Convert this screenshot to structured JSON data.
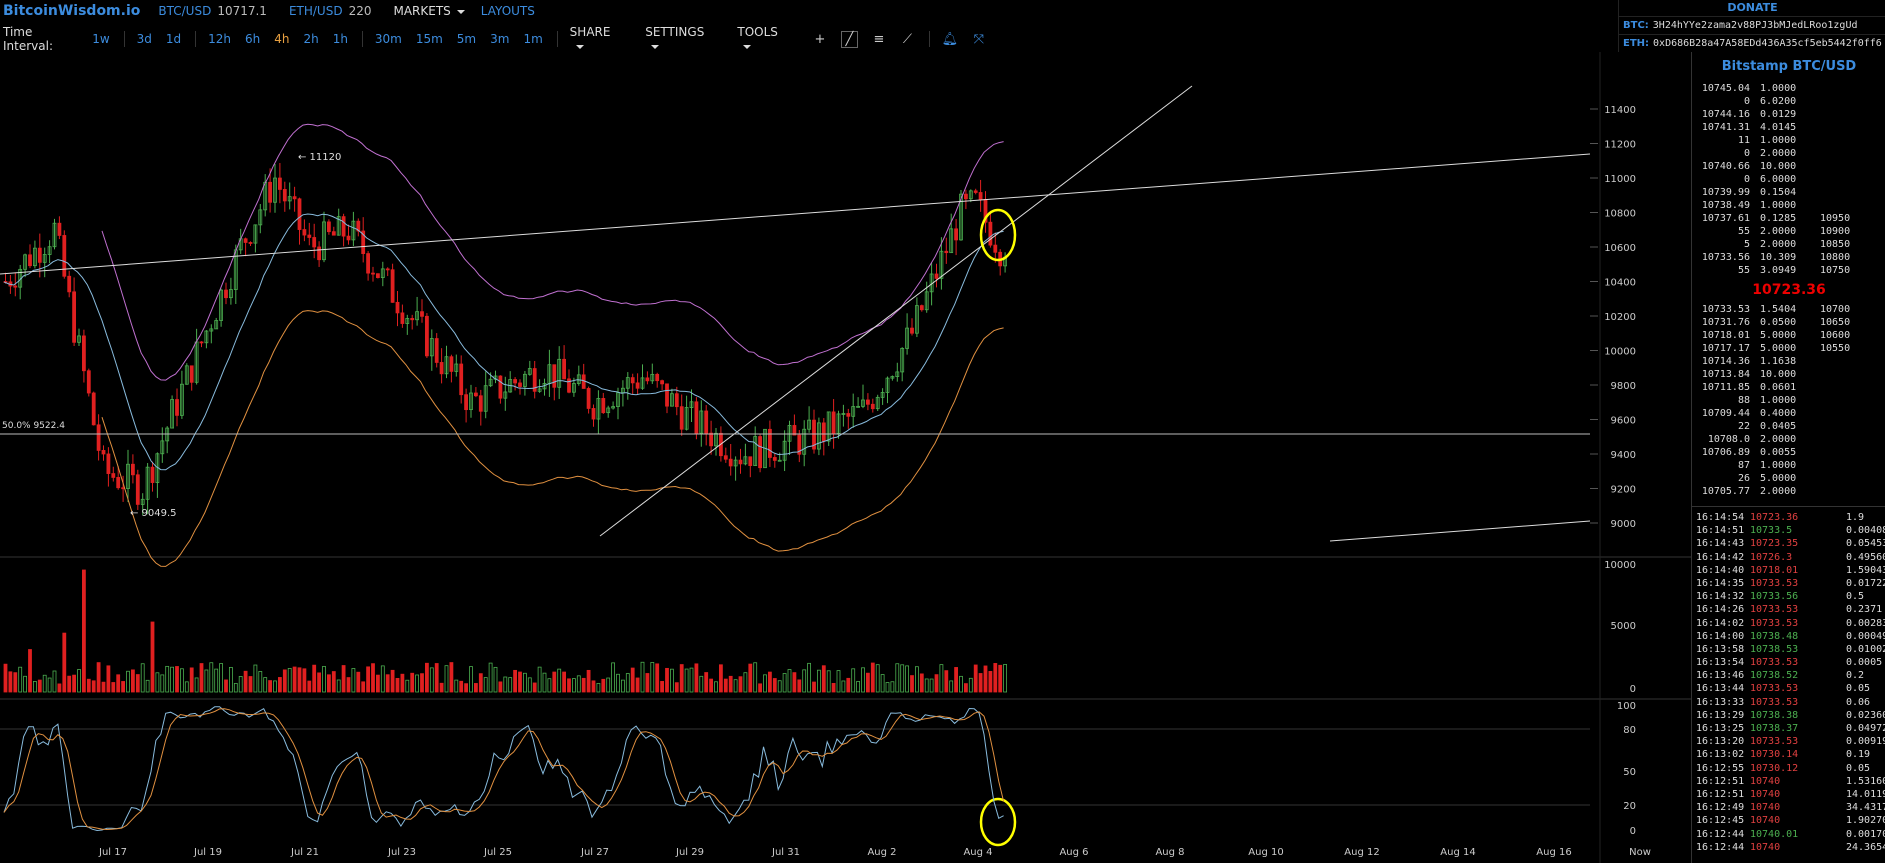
{
  "header": {
    "logo": "BitcoinWisdom.io",
    "pairs": [
      {
        "label": "BTC/USD",
        "price": "10717.1"
      },
      {
        "label": "ETH/USD",
        "price": "220"
      }
    ],
    "markets": "MARKETS",
    "layouts": "LAYOUTS"
  },
  "toolbar": {
    "label": "Time Interval:",
    "intervals": [
      "1w",
      "3d",
      "1d",
      "12h",
      "6h",
      "4h",
      "2h",
      "1h",
      "30m",
      "15m",
      "5m",
      "3m",
      "1m"
    ],
    "active_interval": "4h",
    "share": "SHARE",
    "settings": "SETTINGS",
    "tools": "TOOLS",
    "icons": [
      "crosshair-icon",
      "trendline-icon",
      "horizontal-lines-icon",
      "draw-icon",
      "bell-icon",
      "fullscreen-icon"
    ]
  },
  "donate": {
    "title": "DONATE",
    "btc_label": "BTC:",
    "btc_addr": "3H24hYYe2zama2v88PJ3bMJedLRoo1zgUd",
    "eth_label": "ETH:",
    "eth_addr": "0xD686B28a47A58EDd436A35cf5eb5442f0ff6"
  },
  "chart_data": {
    "type": "candlestick",
    "price_axis": [
      "11400",
      "11200",
      "11000",
      "10800",
      "10600",
      "10400",
      "10200",
      "10000",
      "9800",
      "9600",
      "9400",
      "9200",
      "9000"
    ],
    "volume_axis": [
      "10000",
      "5000",
      "0"
    ],
    "stoch_axis": [
      "100",
      "80",
      "50",
      "20",
      "0"
    ],
    "dates": [
      "Jul 17",
      "Jul 19",
      "Jul 21",
      "Jul 23",
      "Jul 25",
      "Jul 27",
      "Jul 29",
      "Jul 31",
      "Aug 2",
      "Aug 4",
      "Aug 6",
      "Aug 8",
      "Aug 10",
      "Aug 12",
      "Aug 14",
      "Aug 16",
      "Now"
    ],
    "annotations": {
      "high": "← 11120",
      "low": "← 9049.5",
      "fib": "50.0% 9522.4"
    },
    "colors": {
      "up": "#4caf50",
      "down": "#e02020",
      "boll_upper": "#c070d0",
      "boll_lower": "#e09040",
      "ma": "#88bbdd",
      "stoch_k": "#88bbdd",
      "stoch_d": "#e09040",
      "highlight": "#ffff00"
    }
  },
  "sidebar": {
    "title": "Bitstamp BTC/USD",
    "asks": [
      [
        "10745.04",
        "1.0000",
        ""
      ],
      [
        "0",
        "6.0200",
        ""
      ],
      [
        "10744.16",
        "0.0129",
        ""
      ],
      [
        "10741.31",
        "4.0145",
        ""
      ],
      [
        "11",
        "1.0000",
        ""
      ],
      [
        "0",
        "2.0000",
        ""
      ],
      [
        "10740.66",
        "10.000",
        ""
      ],
      [
        "0",
        "6.0000",
        ""
      ],
      [
        "10739.99",
        "0.1504",
        ""
      ],
      [
        "10738.49",
        "1.0000",
        ""
      ],
      [
        "10737.61",
        "0.1285",
        "10950"
      ],
      [
        "55",
        "2.0000",
        "10900"
      ],
      [
        "5",
        "2.0000",
        "10850"
      ],
      [
        "10733.56",
        "10.309",
        "10800"
      ],
      [
        "55",
        "3.0949",
        "10750"
      ]
    ],
    "last_price": "10723.36",
    "bids": [
      [
        "10733.53",
        "1.5404",
        "10700"
      ],
      [
        "10731.76",
        "0.0500",
        "10650"
      ],
      [
        "10718.01",
        "5.0000",
        "10600"
      ],
      [
        "10717.17",
        "5.0000",
        "10550"
      ],
      [
        "10714.36",
        "1.1638",
        ""
      ],
      [
        "10713.84",
        "10.000",
        ""
      ],
      [
        "10711.85",
        "0.0601",
        ""
      ],
      [
        "88",
        "1.0000",
        ""
      ],
      [
        "10709.44",
        "0.4000",
        ""
      ],
      [
        "22",
        "0.0405",
        ""
      ],
      [
        "10708.0",
        "2.0000",
        ""
      ],
      [
        "10706.89",
        "0.0055",
        ""
      ],
      [
        "87",
        "1.0000",
        ""
      ],
      [
        "26",
        "5.0000",
        ""
      ],
      [
        "10705.77",
        "2.0000",
        ""
      ]
    ],
    "trades": [
      [
        "16:14:54",
        "10723.36",
        "1.9",
        "dn"
      ],
      [
        "16:14:51",
        "10733.5",
        "0.00408",
        "up"
      ],
      [
        "16:14:43",
        "10723.35",
        "0.05453",
        "dn"
      ],
      [
        "16:14:42",
        "10726.3",
        "0.49560",
        "dn"
      ],
      [
        "16:14:40",
        "10718.01",
        "1.59043",
        "dn"
      ],
      [
        "16:14:35",
        "10733.53",
        "0.01722",
        "dn"
      ],
      [
        "16:14:32",
        "10733.56",
        "0.5",
        "up"
      ],
      [
        "16:14:26",
        "10733.53",
        "0.2371",
        "dn"
      ],
      [
        "16:14:02",
        "10733.53",
        "0.00283",
        "dn"
      ],
      [
        "16:14:00",
        "10738.48",
        "0.00049",
        "up"
      ],
      [
        "16:13:58",
        "10738.53",
        "0.01002",
        "up"
      ],
      [
        "16:13:54",
        "10733.53",
        "0.0005",
        "dn"
      ],
      [
        "16:13:46",
        "10738.52",
        "0.2",
        "up"
      ],
      [
        "16:13:44",
        "10733.53",
        "0.05",
        "dn"
      ],
      [
        "16:13:33",
        "10733.53",
        "0.06",
        "dn"
      ],
      [
        "16:13:29",
        "10738.38",
        "0.02360",
        "up"
      ],
      [
        "16:13:25",
        "10738.37",
        "0.04972",
        "up"
      ],
      [
        "16:13:20",
        "10733.53",
        "0.00919",
        "dn"
      ],
      [
        "16:13:02",
        "10730.14",
        "0.19",
        "dn"
      ],
      [
        "16:12:55",
        "10730.12",
        "0.05",
        "dn"
      ],
      [
        "16:12:51",
        "10740",
        "1.53160",
        "dn"
      ],
      [
        "16:12:51",
        "10740",
        "14.0119",
        "dn"
      ],
      [
        "16:12:49",
        "10740",
        "34.4317",
        "dn"
      ],
      [
        "16:12:45",
        "10740",
        "1.90270",
        "dn"
      ],
      [
        "16:12:44",
        "10740.01",
        "0.00170",
        "up"
      ],
      [
        "16:12:44",
        "10740",
        "24.3654",
        "dn"
      ]
    ]
  }
}
